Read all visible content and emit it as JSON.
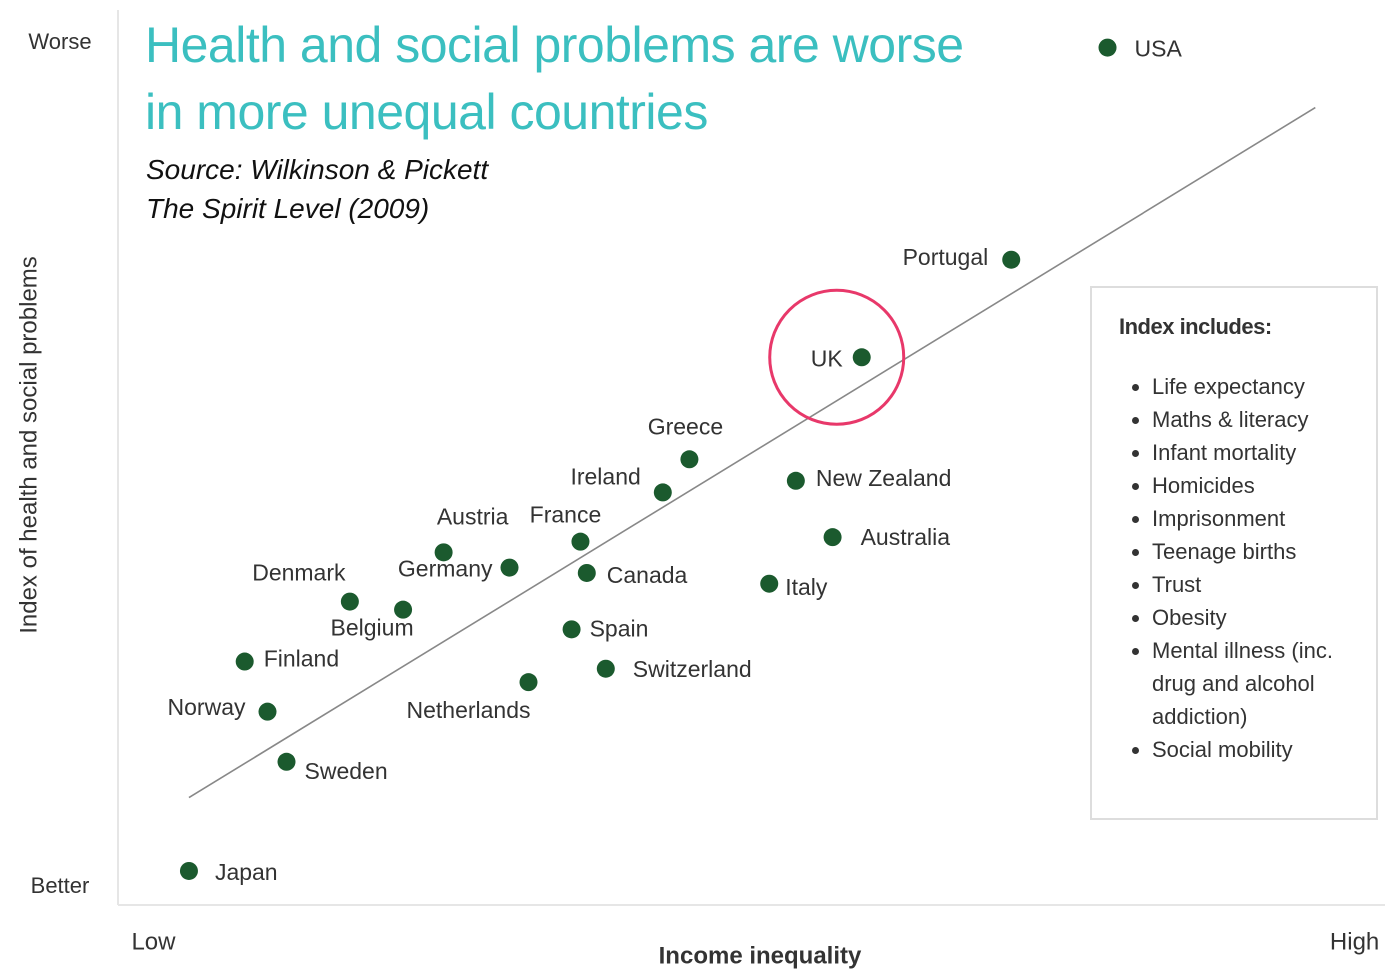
{
  "chart_data": {
    "type": "scatter",
    "title": "Health and social problems are worse in more unequal countries",
    "source": [
      "Source: Wilkinson & Pickett",
      "The Spirit Level (2009)"
    ],
    "xlabel": "Income inequality",
    "ylabel": "Index of health and social problems",
    "xlim": [
      0,
      100
    ],
    "ylim": [
      0,
      100
    ],
    "xticks": [
      {
        "value": 2.8,
        "label": "Low"
      },
      {
        "value": 97.6,
        "label": "High"
      }
    ],
    "yticks": [
      {
        "value": 2.0,
        "label": "Better"
      },
      {
        "value": 96.3,
        "label": "Worse"
      }
    ],
    "color": "#1b5a2e",
    "labels": [
      "Japan",
      "Sweden",
      "Norway",
      "Finland",
      "Denmark",
      "Belgium",
      "Austria",
      "Germany",
      "Netherlands",
      "France",
      "Canada",
      "Spain",
      "Switzerland",
      "Ireland",
      "Greece",
      "Italy",
      "New Zealand",
      "Australia",
      "UK",
      "Portugal",
      "USA"
    ],
    "x": [
      5.6,
      13.3,
      11.8,
      10.0,
      18.3,
      22.5,
      25.7,
      30.9,
      32.4,
      36.5,
      37.0,
      35.8,
      38.5,
      43.0,
      45.1,
      51.4,
      53.5,
      56.4,
      58.7,
      70.5,
      78.1
    ],
    "y": [
      3.8,
      16.0,
      21.6,
      27.2,
      33.9,
      33.0,
      39.4,
      37.7,
      24.9,
      40.6,
      37.1,
      30.8,
      26.4,
      46.1,
      49.8,
      35.9,
      47.4,
      41.1,
      61.2,
      72.1,
      95.8
    ],
    "trendline": {
      "x": [
        5.6,
        94.5
      ],
      "y": [
        12.0,
        89.1
      ],
      "color": "#888888"
    },
    "highlight": "UK",
    "highlight_color": "#e8386a",
    "index_box": {
      "title": "Index includes:",
      "items": [
        "Life expectancy",
        "Maths & literacy",
        "Infant mortality",
        "Homicides",
        "Imprisonment",
        "Teenage births",
        "Trust",
        "Obesity",
        "Mental illness (inc. drug and alcohol addiction)",
        "Social mobility"
      ]
    }
  }
}
